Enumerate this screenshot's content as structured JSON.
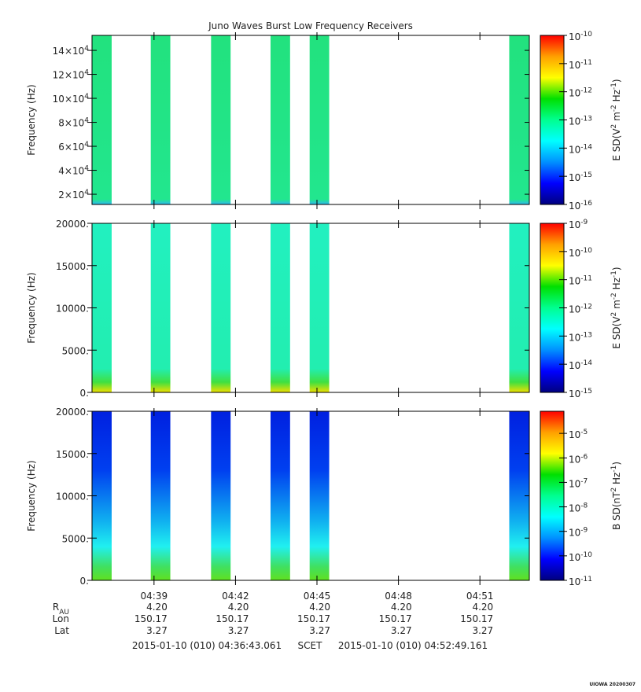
{
  "title": "Juno Waves Burst Low Frequency Receivers",
  "xaxis": {
    "xlim": [
      36.717,
      52.819
    ],
    "xticks": [
      {
        "value": 39,
        "label": "04:39"
      },
      {
        "value": 42,
        "label": "04:42"
      },
      {
        "value": 45,
        "label": "04:45"
      },
      {
        "value": 48,
        "label": "04:48"
      },
      {
        "value": 51,
        "label": "04:51"
      }
    ]
  },
  "bursts": [
    [
      36.72,
      37.44
    ],
    [
      38.88,
      39.6
    ],
    [
      41.1,
      41.82
    ],
    [
      43.29,
      44.01
    ],
    [
      44.73,
      45.45
    ],
    [
      52.08,
      52.82
    ]
  ],
  "colormap": [
    "#00007f",
    "#0000ff",
    "#0090ff",
    "#00ffff",
    "#00ff90",
    "#00e000",
    "#ffff00",
    "#ffa000",
    "#ff0000"
  ],
  "chart_data": [
    {
      "type": "spectrogram",
      "ylabel": "Frequency (Hz)",
      "ylim": [
        11500,
        152500
      ],
      "yticks": [
        {
          "value": 20000,
          "label": "2×10",
          "exponent": "4"
        },
        {
          "value": 40000,
          "label": "4×10",
          "exponent": "4"
        },
        {
          "value": 60000,
          "label": "6×10",
          "exponent": "4"
        },
        {
          "value": 80000,
          "label": "8×10",
          "exponent": "4"
        },
        {
          "value": 100000,
          "label": "10×10",
          "exponent": "4"
        },
        {
          "value": 120000,
          "label": "12×10",
          "exponent": "4"
        },
        {
          "value": 140000,
          "label": "14×10",
          "exponent": "4"
        }
      ],
      "burst_colors": [
        {
          "offset": 0,
          "color": "#22e27e"
        },
        {
          "offset": 0.97,
          "color": "#22e68e"
        },
        {
          "offset": 1,
          "color": "#30b8f0"
        }
      ],
      "clim": [
        1e-16,
        1e-10
      ],
      "log_colorbar": true,
      "cticks": [
        {
          "value": 1e-16,
          "label": "10",
          "exponent": "-16"
        },
        {
          "value": 1e-15,
          "label": "10",
          "exponent": "-15"
        },
        {
          "value": 1e-14,
          "label": "10",
          "exponent": "-14"
        },
        {
          "value": 1e-13,
          "label": "10",
          "exponent": "-13"
        },
        {
          "value": 1e-12,
          "label": "10",
          "exponent": "-12"
        },
        {
          "value": 1e-11,
          "label": "10",
          "exponent": "-11"
        },
        {
          "value": 1e-10,
          "label": "10",
          "exponent": "-10"
        }
      ],
      "colorbar_label": [
        "E SD(V",
        "2",
        " m",
        "-2",
        " Hz",
        "-1",
        ")"
      ]
    },
    {
      "type": "spectrogram",
      "ylabel": "Frequency (Hz)",
      "ylim": [
        0,
        20000
      ],
      "yticks": [
        {
          "value": 0,
          "label": "0."
        },
        {
          "value": 5000,
          "label": "5000."
        },
        {
          "value": 10000,
          "label": "10000."
        },
        {
          "value": 15000,
          "label": "15000."
        },
        {
          "value": 20000,
          "label": "20000."
        }
      ],
      "burst_colors": [
        {
          "offset": 0,
          "color": "#22f0c0"
        },
        {
          "offset": 0.86,
          "color": "#22eeb0"
        },
        {
          "offset": 0.94,
          "color": "#40e040"
        },
        {
          "offset": 1,
          "color": "#f0e000"
        }
      ],
      "clim": [
        1e-15,
        1e-09
      ],
      "log_colorbar": true,
      "cticks": [
        {
          "value": 1e-15,
          "label": "10",
          "exponent": "-15"
        },
        {
          "value": 1e-14,
          "label": "10",
          "exponent": "-14"
        },
        {
          "value": 1e-13,
          "label": "10",
          "exponent": "-13"
        },
        {
          "value": 1e-12,
          "label": "10",
          "exponent": "-12"
        },
        {
          "value": 1e-11,
          "label": "10",
          "exponent": "-11"
        },
        {
          "value": 1e-10,
          "label": "10",
          "exponent": "-10"
        },
        {
          "value": 1e-09,
          "label": "10",
          "exponent": "-9"
        }
      ],
      "colorbar_label": [
        "E SD(V",
        "2",
        " m",
        "-2",
        " Hz",
        "-1",
        ")"
      ]
    },
    {
      "type": "spectrogram",
      "ylabel": "Frequency (Hz)",
      "ylim": [
        0,
        20000
      ],
      "yticks": [
        {
          "value": 0,
          "label": "0."
        },
        {
          "value": 5000,
          "label": "5000."
        },
        {
          "value": 10000,
          "label": "10000."
        },
        {
          "value": 15000,
          "label": "15000."
        },
        {
          "value": 20000,
          "label": "20000."
        }
      ],
      "burst_colors": [
        {
          "offset": 0,
          "color": "#0020e0"
        },
        {
          "offset": 0.35,
          "color": "#0040f0"
        },
        {
          "offset": 0.65,
          "color": "#10b0f0"
        },
        {
          "offset": 0.8,
          "color": "#20f0f0"
        },
        {
          "offset": 0.92,
          "color": "#40e060"
        },
        {
          "offset": 1,
          "color": "#60e020"
        }
      ],
      "clim": [
        1e-11,
        8e-05
      ],
      "log_colorbar": true,
      "cticks": [
        {
          "value": 1e-11,
          "label": "10",
          "exponent": "-11"
        },
        {
          "value": 1e-10,
          "label": "10",
          "exponent": "-10"
        },
        {
          "value": 1e-09,
          "label": "10",
          "exponent": "-9"
        },
        {
          "value": 1e-08,
          "label": "10",
          "exponent": "-8"
        },
        {
          "value": 1e-07,
          "label": "10",
          "exponent": "-7"
        },
        {
          "value": 1e-06,
          "label": "10",
          "exponent": "-6"
        },
        {
          "value": 1e-05,
          "label": "10",
          "exponent": "-5"
        }
      ],
      "colorbar_label": [
        "B SD(nT",
        "2",
        " Hz",
        "-1",
        ")"
      ]
    }
  ],
  "ephemeris": [
    {
      "label": [
        "R",
        "AU"
      ],
      "values": [
        "4.20",
        "4.20",
        "4.20",
        "4.20",
        "4.20"
      ]
    },
    {
      "label": [
        "Lon"
      ],
      "values": [
        "150.17",
        "150.17",
        "150.17",
        "150.17",
        "150.17"
      ]
    },
    {
      "label": [
        "Lat"
      ],
      "values": [
        "3.27",
        "3.27",
        "3.27",
        "3.27",
        "3.27"
      ]
    }
  ],
  "footer": [
    "2015-01-10 (010) 04:36:43.061",
    "SCET",
    "2015-01-10 (010) 04:52:49.161"
  ],
  "stamp": "UIOWA 20200307"
}
